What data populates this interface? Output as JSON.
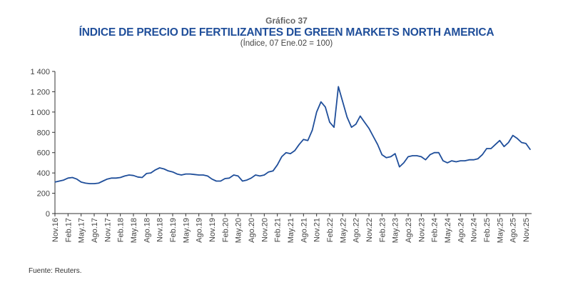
{
  "chart_data": {
    "type": "line",
    "supertitle": "Gráfico 37",
    "title": "ÍNDICE DE PRECIO DE FERTILIZANTES DE GREEN MARKETS NORTH AMERICA",
    "subtitle": "(Índice, 07 Ene.02 = 100)",
    "source": "Fuente: Reuters.",
    "xlabel": "",
    "ylabel": "",
    "ylim": [
      0,
      1400
    ],
    "yticks": [
      0,
      200,
      400,
      600,
      800,
      1000,
      1200,
      1400
    ],
    "ytick_labels": [
      "0",
      "200",
      "400",
      "600",
      "800",
      "1 000",
      "1 200",
      "1 400"
    ],
    "xtick_labels": [
      "Nov.16",
      "Feb.17",
      "May.17",
      "Ago.17",
      "Nov.17",
      "Feb.18",
      "May.18",
      "Ago.18",
      "Nov.18",
      "Feb.19",
      "May.19",
      "Ago.19",
      "Nov.19",
      "Feb.20",
      "May.20",
      "Ago.20",
      "Nov.20",
      "Feb.21",
      "May.21",
      "Ago.21",
      "Nov.21",
      "Feb.22",
      "May.22",
      "Ago.22",
      "Nov.22",
      "Feb.23",
      "May.23",
      "Ago.23",
      "Nov.23",
      "Feb.24",
      "May.24",
      "Ago.24",
      "Nov.24",
      "Feb.25",
      "May.25",
      "Ago.25",
      "Nov.25"
    ],
    "grid": false,
    "color": "#1f4e9a",
    "series": [
      {
        "name": "Índice",
        "start": "Nov.16",
        "frequency": "monthly",
        "values": [
          310,
          320,
          330,
          350,
          355,
          340,
          310,
          300,
          295,
          295,
          300,
          320,
          340,
          350,
          350,
          355,
          370,
          380,
          375,
          360,
          355,
          395,
          400,
          430,
          450,
          440,
          420,
          410,
          390,
          380,
          390,
          390,
          385,
          380,
          380,
          370,
          340,
          320,
          320,
          345,
          350,
          380,
          370,
          320,
          330,
          350,
          380,
          370,
          380,
          410,
          420,
          480,
          560,
          600,
          590,
          620,
          680,
          730,
          720,
          820,
          1000,
          1100,
          1050,
          900,
          850,
          1250,
          1100,
          950,
          850,
          880,
          960,
          900,
          840,
          760,
          680,
          580,
          550,
          560,
          590,
          460,
          500,
          560,
          570,
          570,
          560,
          530,
          580,
          600,
          600,
          520,
          500,
          520,
          510,
          520,
          520,
          530,
          530,
          540,
          580,
          640,
          640,
          680,
          720,
          660,
          700,
          770,
          740,
          700,
          690,
          630
        ]
      }
    ]
  }
}
